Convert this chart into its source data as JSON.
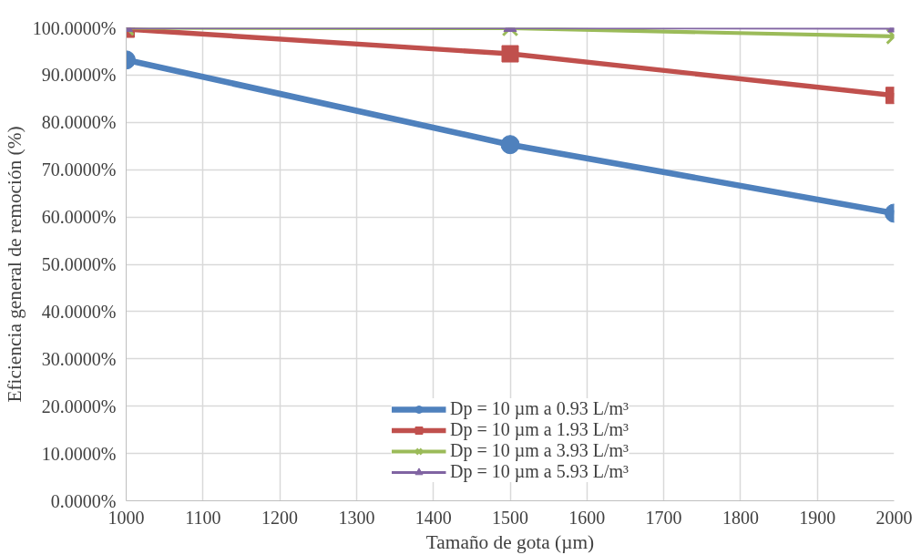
{
  "chart_data": {
    "type": "line",
    "xlabel": "Tamaño de gota (µm)",
    "ylabel": "Eficiencia general de remoción (%)",
    "x": [
      1000,
      1500,
      2000
    ],
    "series": [
      {
        "name": "Dp = 10 µm a 0.93 L/m³",
        "color": "#4f81bd",
        "marker": "circle",
        "values": [
          93.2,
          75.3,
          60.8
        ]
      },
      {
        "name": "Dp = 10 µm a 1.93 L/m³",
        "color": "#c0504d",
        "marker": "square",
        "values": [
          99.7,
          94.5,
          85.7
        ]
      },
      {
        "name": "Dp = 10 µm a 3.93 L/m³",
        "color": "#9bbb59",
        "marker": "cross",
        "values": [
          100,
          99.9,
          98.2
        ]
      },
      {
        "name": "Dp = 10 µm a 5.93 L/m³",
        "color": "#8064a2",
        "marker": "triangle",
        "values": [
          100,
          100,
          99.9
        ]
      }
    ],
    "xlim": [
      1000,
      2000
    ],
    "xticks": [
      1000,
      1100,
      1200,
      1300,
      1400,
      1500,
      1600,
      1700,
      1800,
      1900,
      2000
    ],
    "ylim": [
      0,
      100
    ],
    "yticks": [
      {
        "value": 0,
        "label": "0.0000%"
      },
      {
        "value": 10,
        "label": "10.0000%"
      },
      {
        "value": 20,
        "label": "20.0000%"
      },
      {
        "value": 30,
        "label": "30.0000%"
      },
      {
        "value": 40,
        "label": "40.0000%"
      },
      {
        "value": 50,
        "label": "50.0000%"
      },
      {
        "value": 60,
        "label": "60.0000%"
      },
      {
        "value": 70,
        "label": "70.0000%"
      },
      {
        "value": 80,
        "label": "80.0000%"
      },
      {
        "value": 90,
        "label": "90.0000%"
      },
      {
        "value": 100,
        "label": "100.0000%"
      }
    ],
    "grid": true,
    "legend": "bottom",
    "line_style": "solid"
  }
}
